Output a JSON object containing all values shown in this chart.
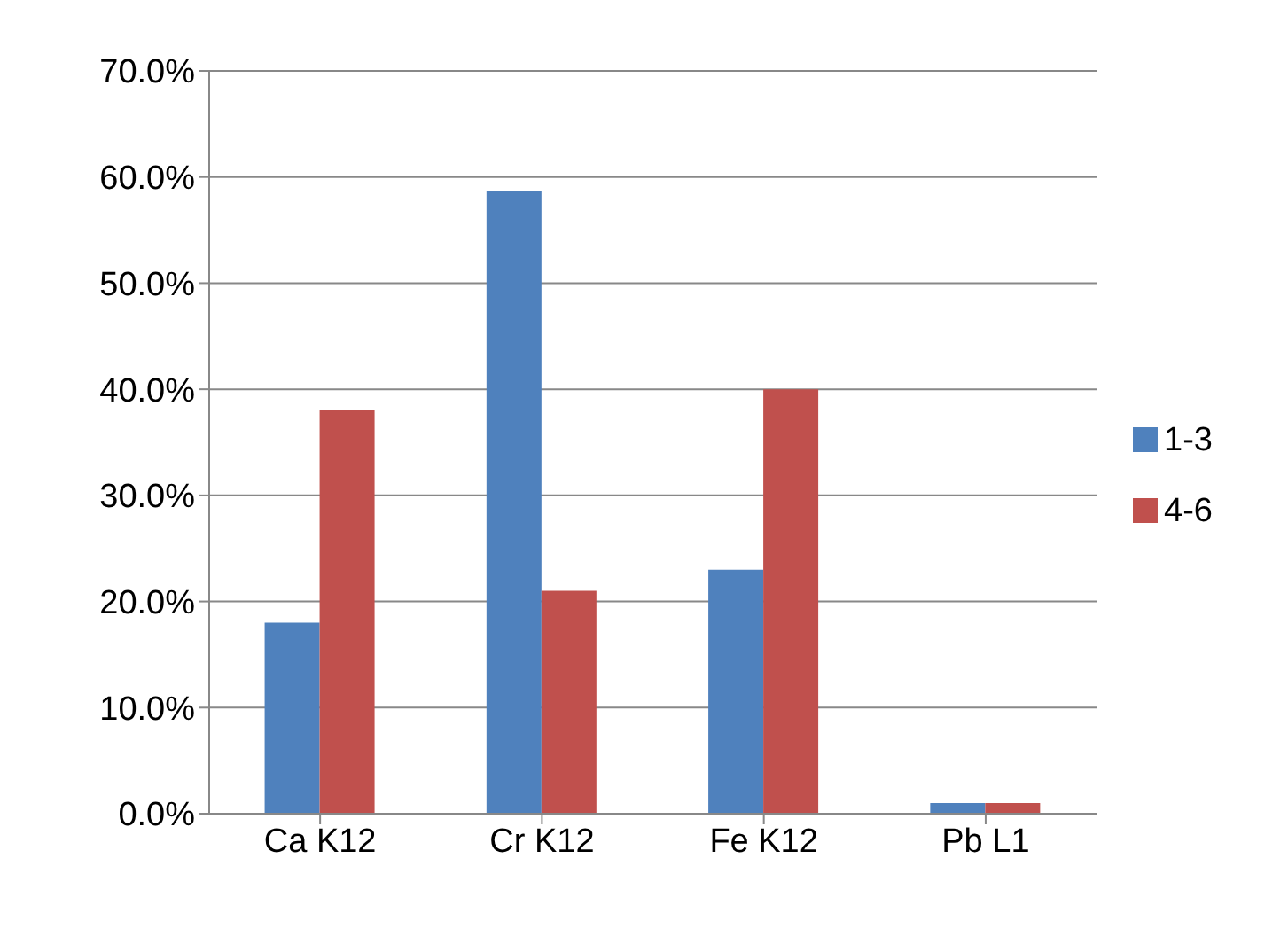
{
  "chart_data": {
    "type": "bar",
    "categories": [
      "Ca K12",
      "Cr K12",
      "Fe K12",
      "Pb L1"
    ],
    "series": [
      {
        "name": "1-3",
        "color": "#4f81bd",
        "values": [
          18.0,
          58.7,
          23.0,
          1.0
        ]
      },
      {
        "name": "4-6",
        "color": "#c0504d",
        "values": [
          38.0,
          21.0,
          40.0,
          1.0
        ]
      }
    ],
    "ylim": [
      0,
      70
    ],
    "yticks": [
      {
        "value": 0,
        "label": "0.0%"
      },
      {
        "value": 10,
        "label": "10.0%"
      },
      {
        "value": 20,
        "label": "20.0%"
      },
      {
        "value": 30,
        "label": "30.0%"
      },
      {
        "value": 40,
        "label": "40.0%"
      },
      {
        "value": 50,
        "label": "50.0%"
      },
      {
        "value": 60,
        "label": "60.0%"
      },
      {
        "value": 70,
        "label": "70.0%"
      }
    ],
    "grid": "y",
    "legend": "right"
  }
}
